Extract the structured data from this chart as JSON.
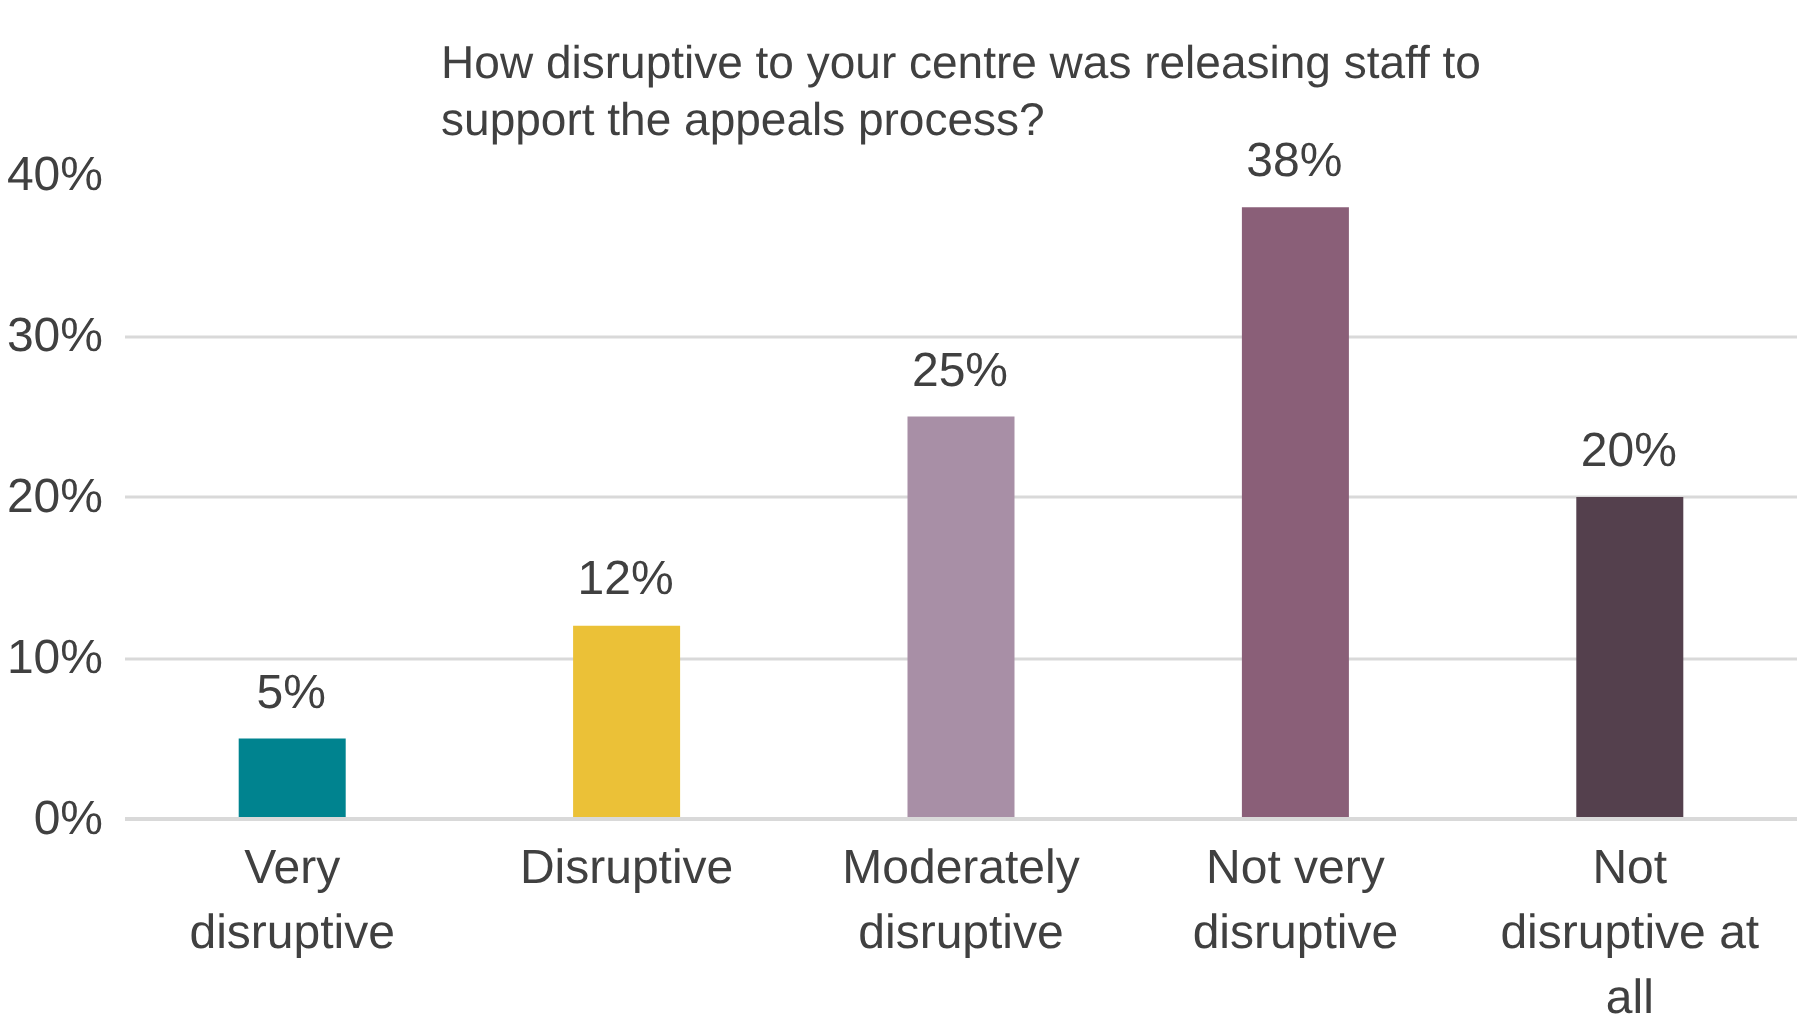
{
  "chart_data": {
    "type": "bar",
    "title": "How disruptive to your centre was releasing staff to support the appeals process?",
    "categories": [
      "Very disruptive",
      "Disruptive",
      "Moderately disruptive",
      "Not very disruptive",
      "Not disruptive at all"
    ],
    "values": [
      5,
      12,
      25,
      38,
      20
    ],
    "colors": [
      "#00838f",
      "#ebc137",
      "#a88fa6",
      "#8a5f78",
      "#54404d"
    ],
    "ylim": [
      0,
      40
    ],
    "yticks": [
      {
        "value": 0,
        "label": "0%"
      },
      {
        "value": 10,
        "label": "10%"
      },
      {
        "value": 20,
        "label": "20%"
      },
      {
        "value": 30,
        "label": "30%"
      },
      {
        "value": 40,
        "label": "40%"
      }
    ],
    "value_labels": [
      "5%",
      "12%",
      "25%",
      "38%",
      "20%"
    ],
    "grid": "y"
  }
}
